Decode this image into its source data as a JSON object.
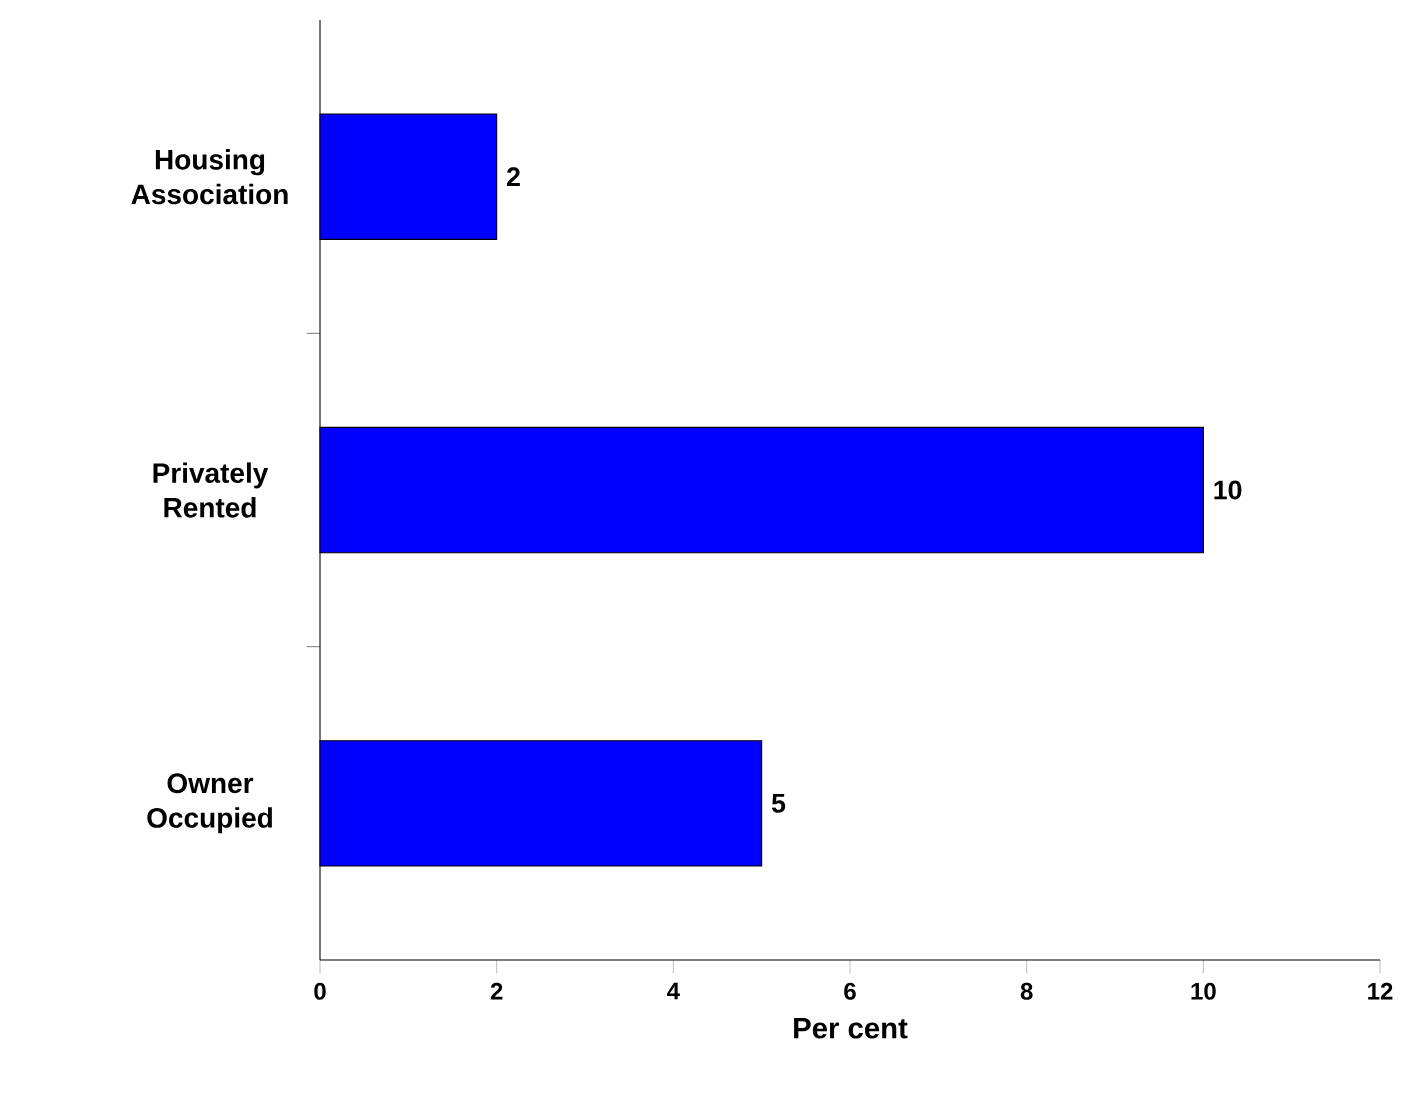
{
  "chart_data": {
    "type": "bar",
    "orientation": "horizontal",
    "categories": [
      "Housing Association",
      "Privately Rented",
      "Owner Occupied"
    ],
    "values": [
      2,
      10,
      5
    ],
    "color": "#0000ff",
    "xlabel": "Per cent",
    "xlim": [
      0,
      12
    ],
    "xticks": [
      0,
      2,
      4,
      6,
      8,
      10,
      12
    ],
    "data_labels": true
  }
}
